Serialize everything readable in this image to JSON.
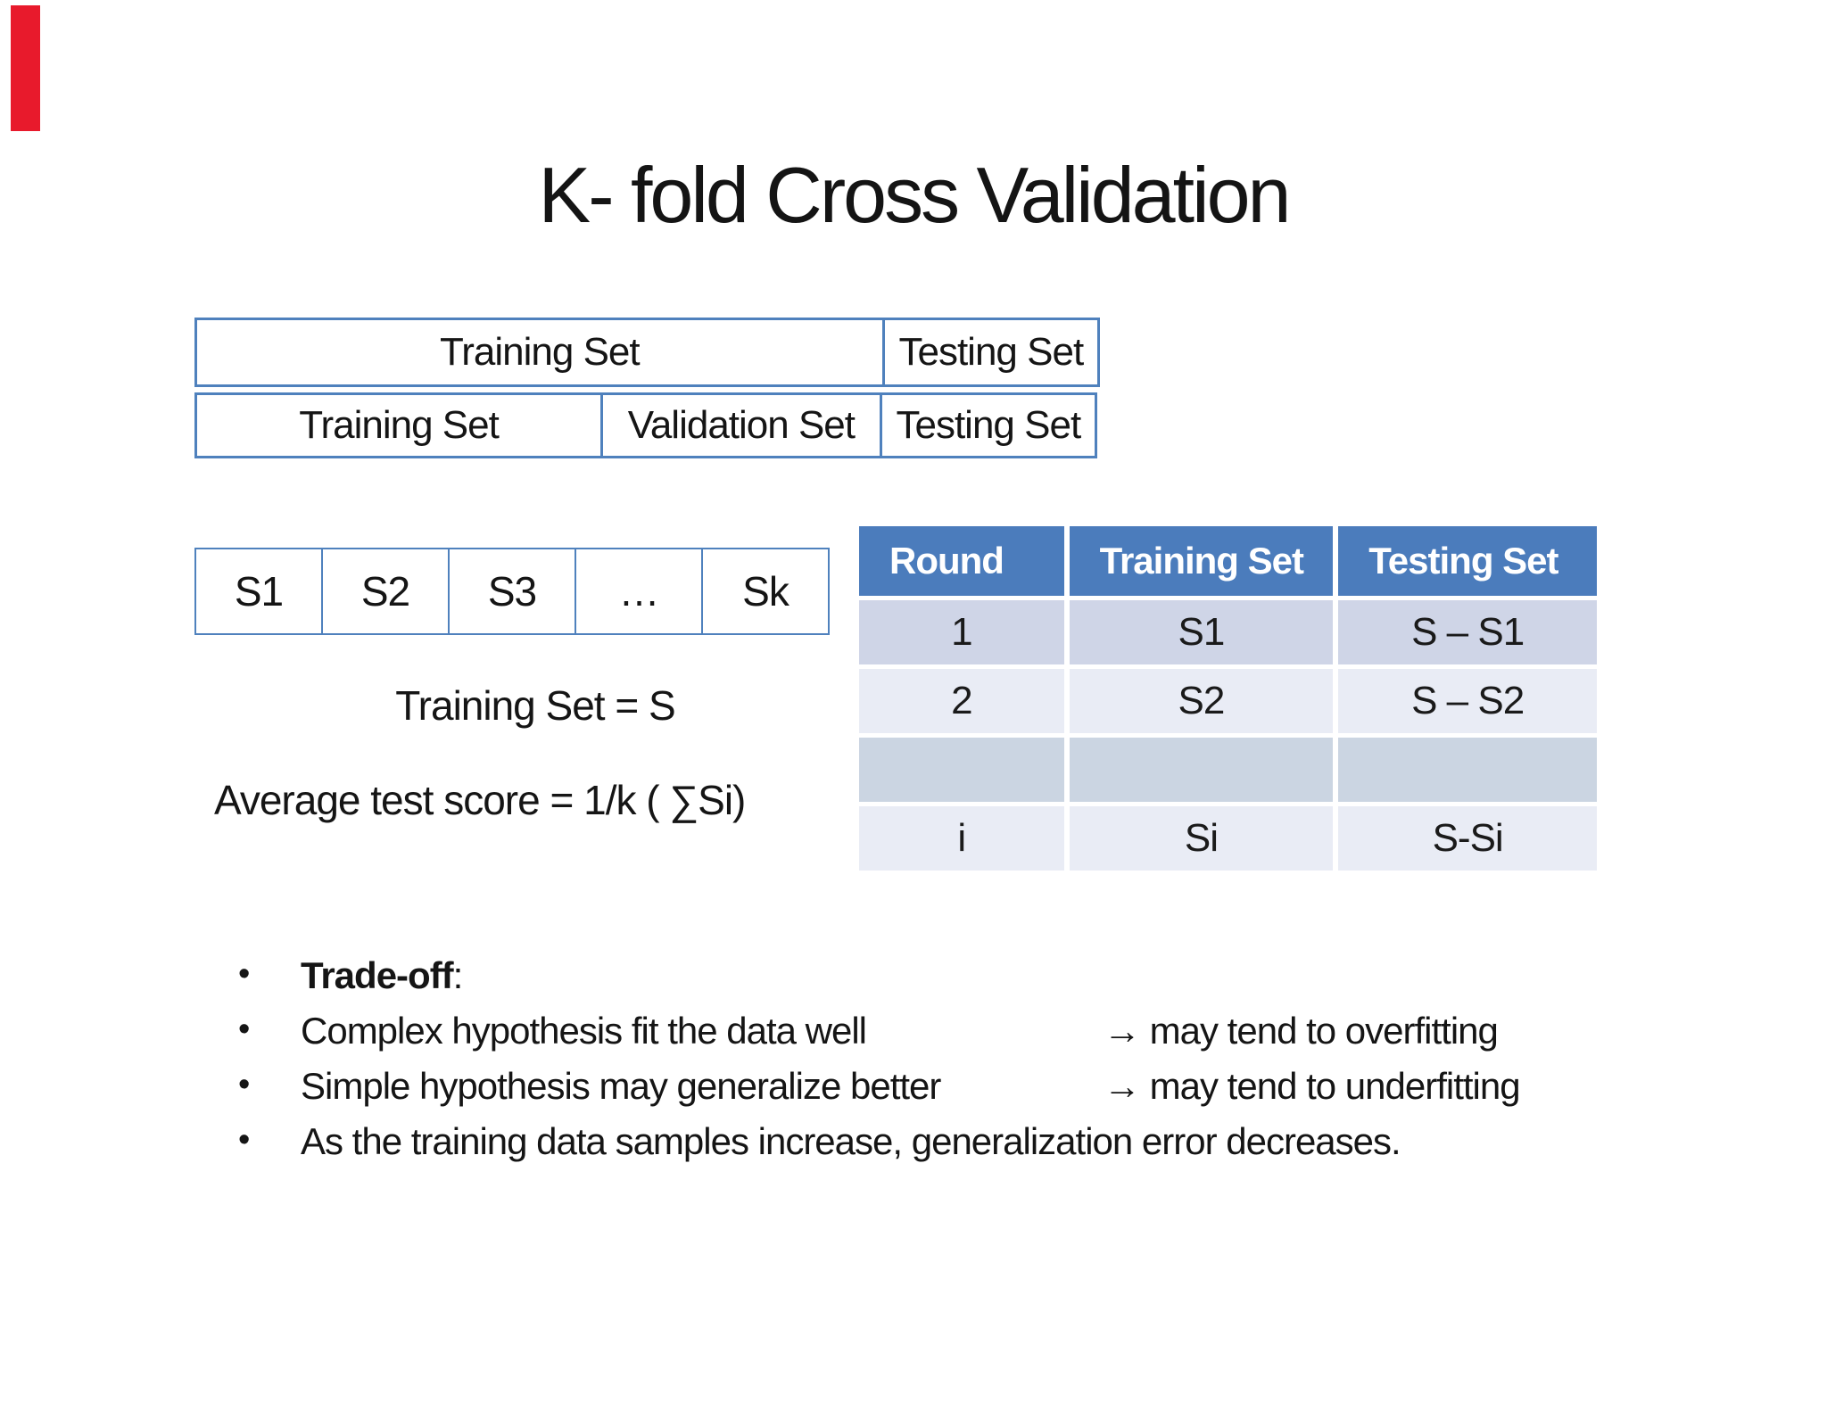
{
  "title": "K- fold Cross Validation",
  "bullet_char": "•",
  "colors": {
    "table_border": "#4f81bd",
    "round_header_bg": "#4b7cbc",
    "band_dark": "#cfd5e7",
    "band_light": "#e9ecf5",
    "band_gray": "#cbd5e2",
    "marker_red": "#e81a2c"
  },
  "holdout_table": {
    "row1": [
      "Training Set",
      "Testing Set"
    ],
    "row2": [
      "Training Set",
      "Validation Set",
      "Testing Set"
    ]
  },
  "fold_strip": {
    "cells": [
      "S1",
      "S2",
      "S3",
      "…",
      "Sk"
    ]
  },
  "labels": {
    "training_set_eq": "Training Set = S",
    "avg_score": "Average test score = 1/k ( ∑Si)"
  },
  "round_table": {
    "headers": [
      "Round",
      "Training Set",
      "Testing Set"
    ],
    "rows": [
      [
        "1",
        "S1",
        "S – S1"
      ],
      [
        "2",
        "S2",
        "S – S2"
      ],
      [
        "",
        "",
        ""
      ],
      [
        "i",
        "Si",
        "S-Si"
      ]
    ]
  },
  "bullets": [
    {
      "lead": "Trade-off",
      "rest": ":"
    },
    {
      "text": "Complex hypothesis fit the data well",
      "note": "→ may tend to overfitting"
    },
    {
      "text": "Simple hypothesis may generalize better",
      "note": "→ may tend to underfitting"
    },
    {
      "text": "As the training data samples increase, generalization error decreases."
    }
  ]
}
